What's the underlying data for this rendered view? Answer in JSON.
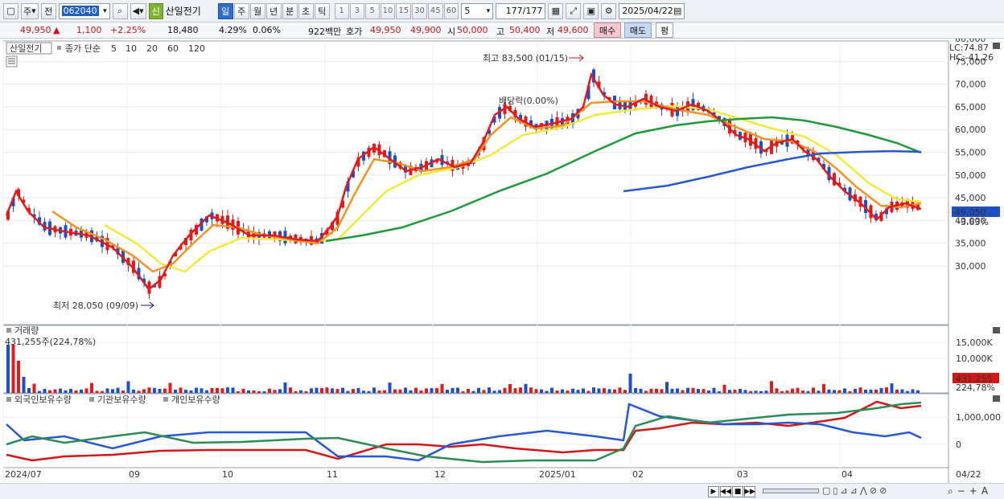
{
  "toolbar": {
    "market_type": "주",
    "market_type2": "전",
    "code": "062040",
    "credit_badge": "신",
    "stock_name": "산일전기",
    "periods": [
      "일",
      "주",
      "월",
      "년",
      "분",
      "초",
      "틱"
    ],
    "active_period": "일",
    "minute_options": [
      "1",
      "3",
      "5",
      "10",
      "15",
      "30",
      "45",
      "60"
    ],
    "unit_value": "5",
    "count": "177",
    "count_total": "/177",
    "date": "2025/04/22"
  },
  "quote": {
    "price": "49,950",
    "change_arrow": "▲",
    "change": "1,100",
    "change_pct": "+2.25%",
    "volume": "18,480",
    "turnover": "4.29%",
    "ratio": "0.06%",
    "amount": "922백만",
    "ask_label": "호가",
    "ask1": "49,950",
    "ask2": "49,900",
    "open_label": "시",
    "open": "50,000",
    "high_label": "고",
    "high": "50,400",
    "low_label": "저",
    "low": "49,600",
    "buy_label": "매수",
    "sell_label": "매도",
    "avg_label": "평"
  },
  "price_pane": {
    "legend_name": "산일전기",
    "legend_type": "종가 단순",
    "ma_periods": [
      {
        "label": "5",
        "color": "#e11b1b"
      },
      {
        "label": "10",
        "color": "#f39321"
      },
      {
        "label": "20",
        "color": "#f2df2a"
      },
      {
        "label": "60",
        "color": "#1f9a3a"
      },
      {
        "label": "120",
        "color": "#2857d6"
      }
    ],
    "lc": "LC:74.87",
    "hc": "HC:-41.26",
    "y_ticks": [
      "80,000",
      "75,000",
      "70,000",
      "65,000",
      "60,000",
      "55,000",
      "50,000",
      "45,000",
      "40,000",
      "35,000",
      "30,000"
    ],
    "current_price_tag": "49,050",
    "current_pct_tag": "-3.63%",
    "high_annotation": "최고 83,500 (01/15)",
    "low_annotation": "최저 28,050 (09/09)",
    "dividend_annotation": "배당락(0.00%)"
  },
  "volume_pane": {
    "title": "거래량",
    "max_label": "431,255주(224,78%)",
    "y_ticks": [
      "15,000K",
      "10,000K"
    ],
    "current_tag": "431,255",
    "current_pct": "224,78%"
  },
  "holding_pane": {
    "series": [
      {
        "label": "외국인보유수량",
        "color": "#d51616"
      },
      {
        "label": "기관보유수량",
        "color": "#2857d6"
      },
      {
        "label": "개인보유수량",
        "color": "#2e8b57"
      }
    ],
    "y_ticks": [
      "1,000,000",
      "0"
    ]
  },
  "x_axis": {
    "labels": [
      "2024/07",
      "09",
      "10",
      "11",
      "12",
      "2025/01",
      "02",
      "03",
      "04"
    ],
    "end_label": "04/22"
  }
}
